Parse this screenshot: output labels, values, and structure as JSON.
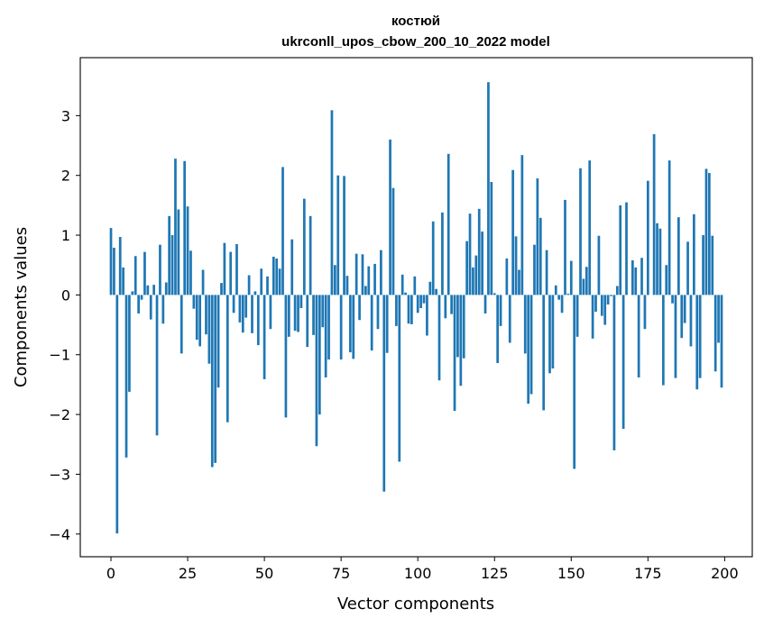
{
  "chart_data": {
    "type": "bar",
    "title": "костюй",
    "subtitle": "ukrconll_upos_cbow_200_10_2022 model",
    "xlabel": "Vector components",
    "ylabel": "Components values",
    "xlim": [
      -10,
      209
    ],
    "ylim": [
      -4.38,
      3.97
    ],
    "xticks": [
      0,
      25,
      50,
      75,
      100,
      125,
      150,
      175,
      200
    ],
    "yticks": [
      -4,
      -3,
      -2,
      -1,
      0,
      1,
      2,
      3
    ],
    "xtick_labels": [
      "0",
      "25",
      "50",
      "75",
      "100",
      "125",
      "150",
      "175",
      "200"
    ],
    "ytick_labels": [
      "−4",
      "−3",
      "−2",
      "−1",
      "0",
      "1",
      "2",
      "3"
    ],
    "bar_color": "#1f77b4",
    "grid": false,
    "x": [
      0,
      1,
      2,
      3,
      4,
      5,
      6,
      7,
      8,
      9,
      10,
      11,
      12,
      13,
      14,
      15,
      16,
      17,
      18,
      19,
      20,
      21,
      22,
      23,
      24,
      25,
      26,
      27,
      28,
      29,
      30,
      31,
      32,
      33,
      34,
      35,
      36,
      37,
      38,
      39,
      40,
      41,
      42,
      43,
      44,
      45,
      46,
      47,
      48,
      49,
      50,
      51,
      52,
      53,
      54,
      55,
      56,
      57,
      58,
      59,
      60,
      61,
      62,
      63,
      64,
      65,
      66,
      67,
      68,
      69,
      70,
      71,
      72,
      73,
      74,
      75,
      76,
      77,
      78,
      79,
      80,
      81,
      82,
      83,
      84,
      85,
      86,
      87,
      88,
      89,
      90,
      91,
      92,
      93,
      94,
      95,
      96,
      97,
      98,
      99,
      100,
      101,
      102,
      103,
      104,
      105,
      106,
      107,
      108,
      109,
      110,
      111,
      112,
      113,
      114,
      115,
      116,
      117,
      118,
      119,
      120,
      121,
      122,
      123,
      124,
      125,
      126,
      127,
      128,
      129,
      130,
      131,
      132,
      133,
      134,
      135,
      136,
      137,
      138,
      139,
      140,
      141,
      142,
      143,
      144,
      145,
      146,
      147,
      148,
      149,
      150,
      151,
      152,
      153,
      154,
      155,
      156,
      157,
      158,
      159,
      160,
      161,
      162,
      163,
      164,
      165,
      166,
      167,
      168,
      169,
      170,
      171,
      172,
      173,
      174,
      175,
      176,
      177,
      178,
      179,
      180,
      181,
      182,
      183,
      184,
      185,
      186,
      187,
      188,
      189,
      190,
      191,
      192,
      193,
      194,
      195,
      196,
      197,
      198,
      199
    ],
    "values": [
      1.12,
      0.79,
      -3.99,
      0.97,
      0.46,
      -2.72,
      -1.62,
      0.06,
      0.65,
      -0.31,
      -0.08,
      0.72,
      0.16,
      -0.41,
      0.17,
      -2.35,
      0.84,
      -0.48,
      0.21,
      1.32,
      1.0,
      2.28,
      1.43,
      -0.98,
      2.24,
      1.48,
      0.74,
      -0.23,
      -0.75,
      -0.86,
      0.42,
      -0.66,
      -1.15,
      -2.88,
      -2.81,
      -1.55,
      0.2,
      0.87,
      -2.13,
      0.72,
      -0.3,
      0.85,
      -0.46,
      -0.63,
      -0.38,
      0.33,
      -0.64,
      0.06,
      -0.84,
      0.44,
      -1.41,
      0.31,
      -0.57,
      0.64,
      0.61,
      0.44,
      2.14,
      -2.05,
      -0.7,
      0.93,
      -0.6,
      -0.62,
      -0.22,
      1.61,
      -0.87,
      1.32,
      -0.67,
      -2.53,
      -2.0,
      -0.54,
      -1.38,
      -1.08,
      3.09,
      0.5,
      2.0,
      -1.08,
      1.99,
      0.32,
      -0.96,
      -1.07,
      0.69,
      -0.42,
      0.68,
      0.15,
      0.48,
      -0.93,
      0.52,
      -0.57,
      0.75,
      -3.29,
      -0.97,
      2.6,
      1.79,
      -0.52,
      -2.79,
      0.34,
      0.04,
      -0.48,
      -0.49,
      0.31,
      -0.3,
      -0.22,
      -0.14,
      -0.68,
      0.22,
      1.23,
      0.1,
      -1.43,
      1.38,
      -0.39,
      2.36,
      -0.32,
      -1.94,
      -1.04,
      -1.52,
      -1.06,
      0.9,
      1.36,
      0.46,
      0.66,
      1.44,
      1.06,
      -0.31,
      3.56,
      1.89,
      0.03,
      -1.14,
      -0.52,
      0.0,
      0.61,
      -0.8,
      2.09,
      0.98,
      0.42,
      2.34,
      -0.98,
      -1.82,
      -1.66,
      0.84,
      1.95,
      1.29,
      -1.93,
      0.75,
      -1.31,
      -1.23,
      0.16,
      -0.08,
      -0.3,
      1.59,
      0.02,
      0.57,
      -2.91,
      -0.7,
      2.12,
      0.27,
      0.47,
      2.25,
      -0.73,
      -0.28,
      0.99,
      -0.35,
      -0.5,
      -0.16,
      -0.02,
      -2.6,
      0.15,
      1.5,
      -2.24,
      1.55,
      0.0,
      0.58,
      0.46,
      -1.38,
      0.62,
      -0.57,
      1.91,
      0.0,
      2.69,
      1.2,
      1.11,
      -1.51,
      0.5,
      2.25,
      -0.14,
      -1.39,
      1.3,
      -0.72,
      -0.47,
      0.89,
      -0.86,
      1.35,
      -1.58,
      -1.39,
      1.0,
      2.11,
      2.04,
      0.99,
      -1.28,
      -0.8,
      -1.55
    ]
  }
}
